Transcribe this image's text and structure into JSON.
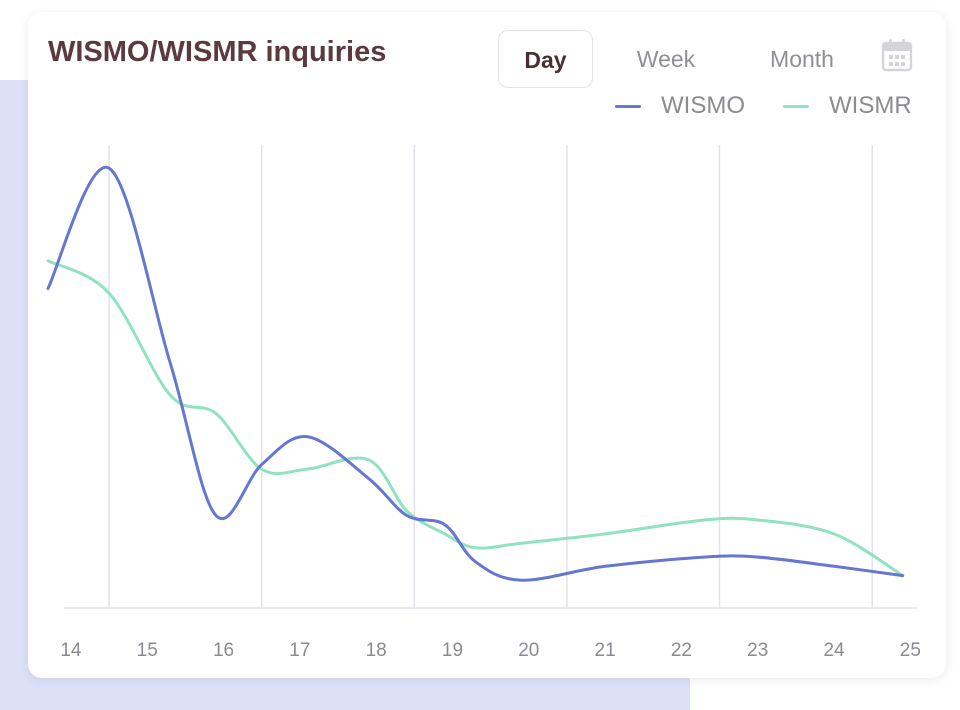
{
  "header": {
    "title": "WISMO/WISMR inquiries",
    "ranges": [
      "Day",
      "Week",
      "Month"
    ],
    "active_range": "Day"
  },
  "icons": {
    "calendar": "calendar-icon"
  },
  "colors": {
    "title": "#5a3a3e",
    "wismo": "#6577cf",
    "wismr": "#8fe3bf",
    "gridline": "#e2e2ea",
    "tick": "#8a8a92"
  },
  "chart_data": {
    "type": "line",
    "x": [
      13.7,
      14.5,
      15.3,
      15.9,
      16.5,
      17.1,
      17.9,
      18.4,
      18.9,
      19.3,
      19.9,
      21.0,
      22.3,
      23.0,
      24.0,
      24.9
    ],
    "series": [
      {
        "name": "WISMO",
        "values": [
          69,
          95,
          53,
          20,
          31,
          37,
          28,
          20,
          18,
          10,
          6,
          9,
          11,
          11,
          9,
          7
        ]
      },
      {
        "name": "WISMR",
        "values": [
          75,
          68,
          46,
          42,
          30,
          30,
          32,
          21,
          16,
          13,
          14,
          16,
          19,
          19,
          16,
          7
        ]
      }
    ],
    "tick_labels": [
      "14",
      "15",
      "16",
      "17",
      "18",
      "19",
      "20",
      "21",
      "22",
      "23",
      "24",
      "25"
    ],
    "xlim": [
      13.7,
      25.1
    ],
    "ylim": [
      0,
      100
    ],
    "grid": true,
    "legend_position": "top-right"
  }
}
